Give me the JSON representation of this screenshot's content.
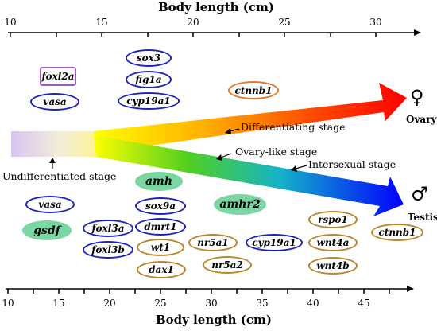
{
  "top_axis": {
    "title": "Body length (cm)",
    "ticks": [
      "10",
      "15",
      "20",
      "25",
      "30"
    ]
  },
  "bottom_axis": {
    "title": "Body length (cm)",
    "ticks": [
      "10",
      "15",
      "20",
      "25",
      "30",
      "35",
      "40",
      "45"
    ]
  },
  "stages": {
    "undifferentiated": "Undifferentiated stage",
    "differentiating": "Differentiating stage",
    "ovary_like": "Ovary-like stage",
    "intersexual": "Intersexual  stage"
  },
  "outcomes": {
    "ovary": "Ovary",
    "ovary_symbol": "♀",
    "testis": "Testis",
    "testis_symbol": "♂"
  },
  "colors": {
    "blue_outline": "#1a23b8",
    "gold_outline": "#b8862a",
    "orange_outline": "#e2792a",
    "purple_outline": "#9a5bc4",
    "green_fill": "#7bd6a3"
  },
  "genes_top": {
    "foxl2a": "foxl2a",
    "vasa": "vasa",
    "sox3": "sox3",
    "fig1a": "fig1a",
    "cyp19a1": "cyp19a1",
    "ctnnb1": "ctnnb1"
  },
  "genes_bottom": {
    "amh": "amh",
    "vasa": "vasa",
    "sox9a": "sox9a",
    "amhr2": "amhr2",
    "gsdf": "gsdf",
    "foxl3a": "foxl3a",
    "dmrt1": "dmrt1",
    "foxl3b": "foxl3b",
    "wt1": "wt1",
    "nr5a1": "nr5a1",
    "cyp19a1": "cyp19a1",
    "dax1": "dax1",
    "nr5a2": "nr5a2",
    "rspo1": "rspo1",
    "wnt4a": "wnt4a",
    "wnt4b": "wnt4b",
    "ctnnb1": "ctnnb1"
  }
}
